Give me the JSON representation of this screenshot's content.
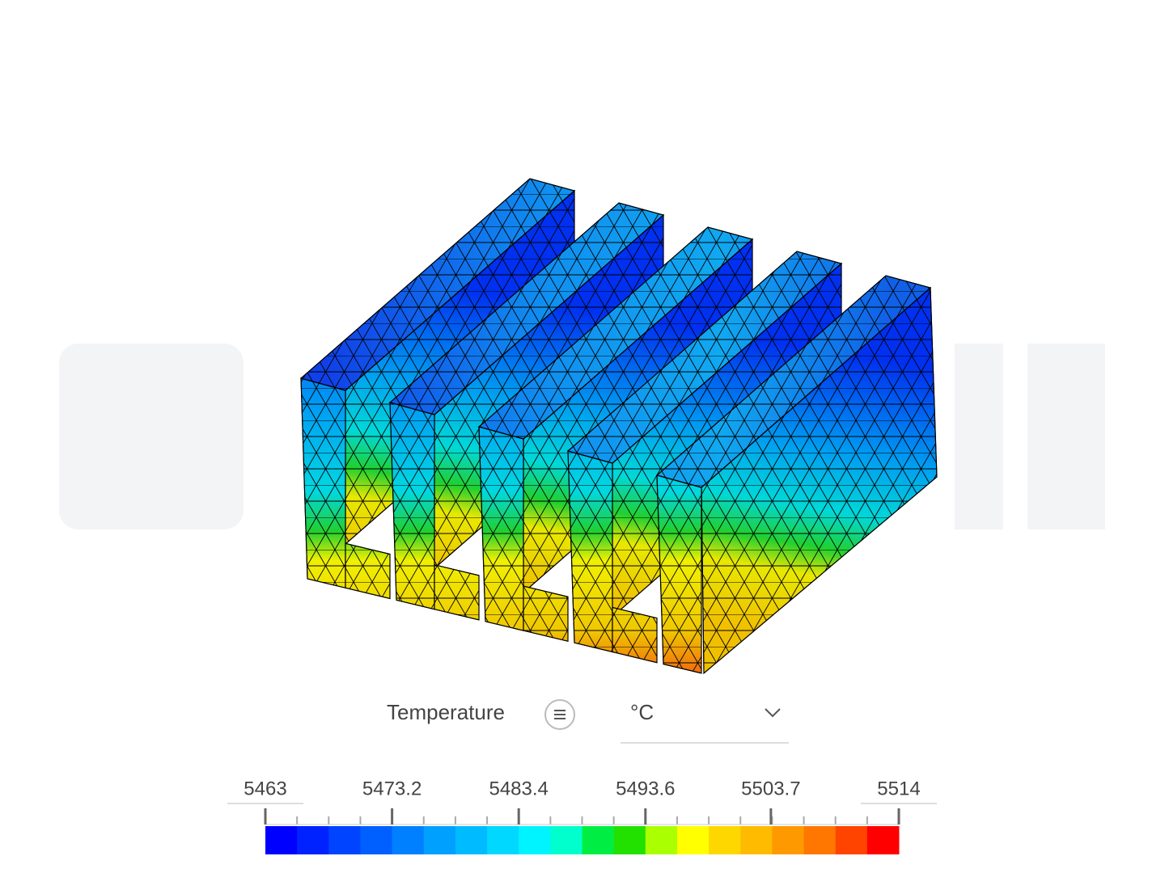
{
  "legend": {
    "title": "Temperature",
    "unit": "°C",
    "ticks": [
      5463,
      5473.2,
      5483.4,
      5493.6,
      5503.7,
      5514
    ],
    "colors": [
      "#0000ff",
      "#0022ff",
      "#0044ff",
      "#0060ff",
      "#0080ff",
      "#00a0ff",
      "#00bbff",
      "#00d8ff",
      "#00f4ff",
      "#00ffcc",
      "#00ee44",
      "#22e000",
      "#aaff00",
      "#ffff00",
      "#ffd700",
      "#ffbb00",
      "#ff9900",
      "#ff7700",
      "#ff4400",
      "#ff0000"
    ]
  }
}
